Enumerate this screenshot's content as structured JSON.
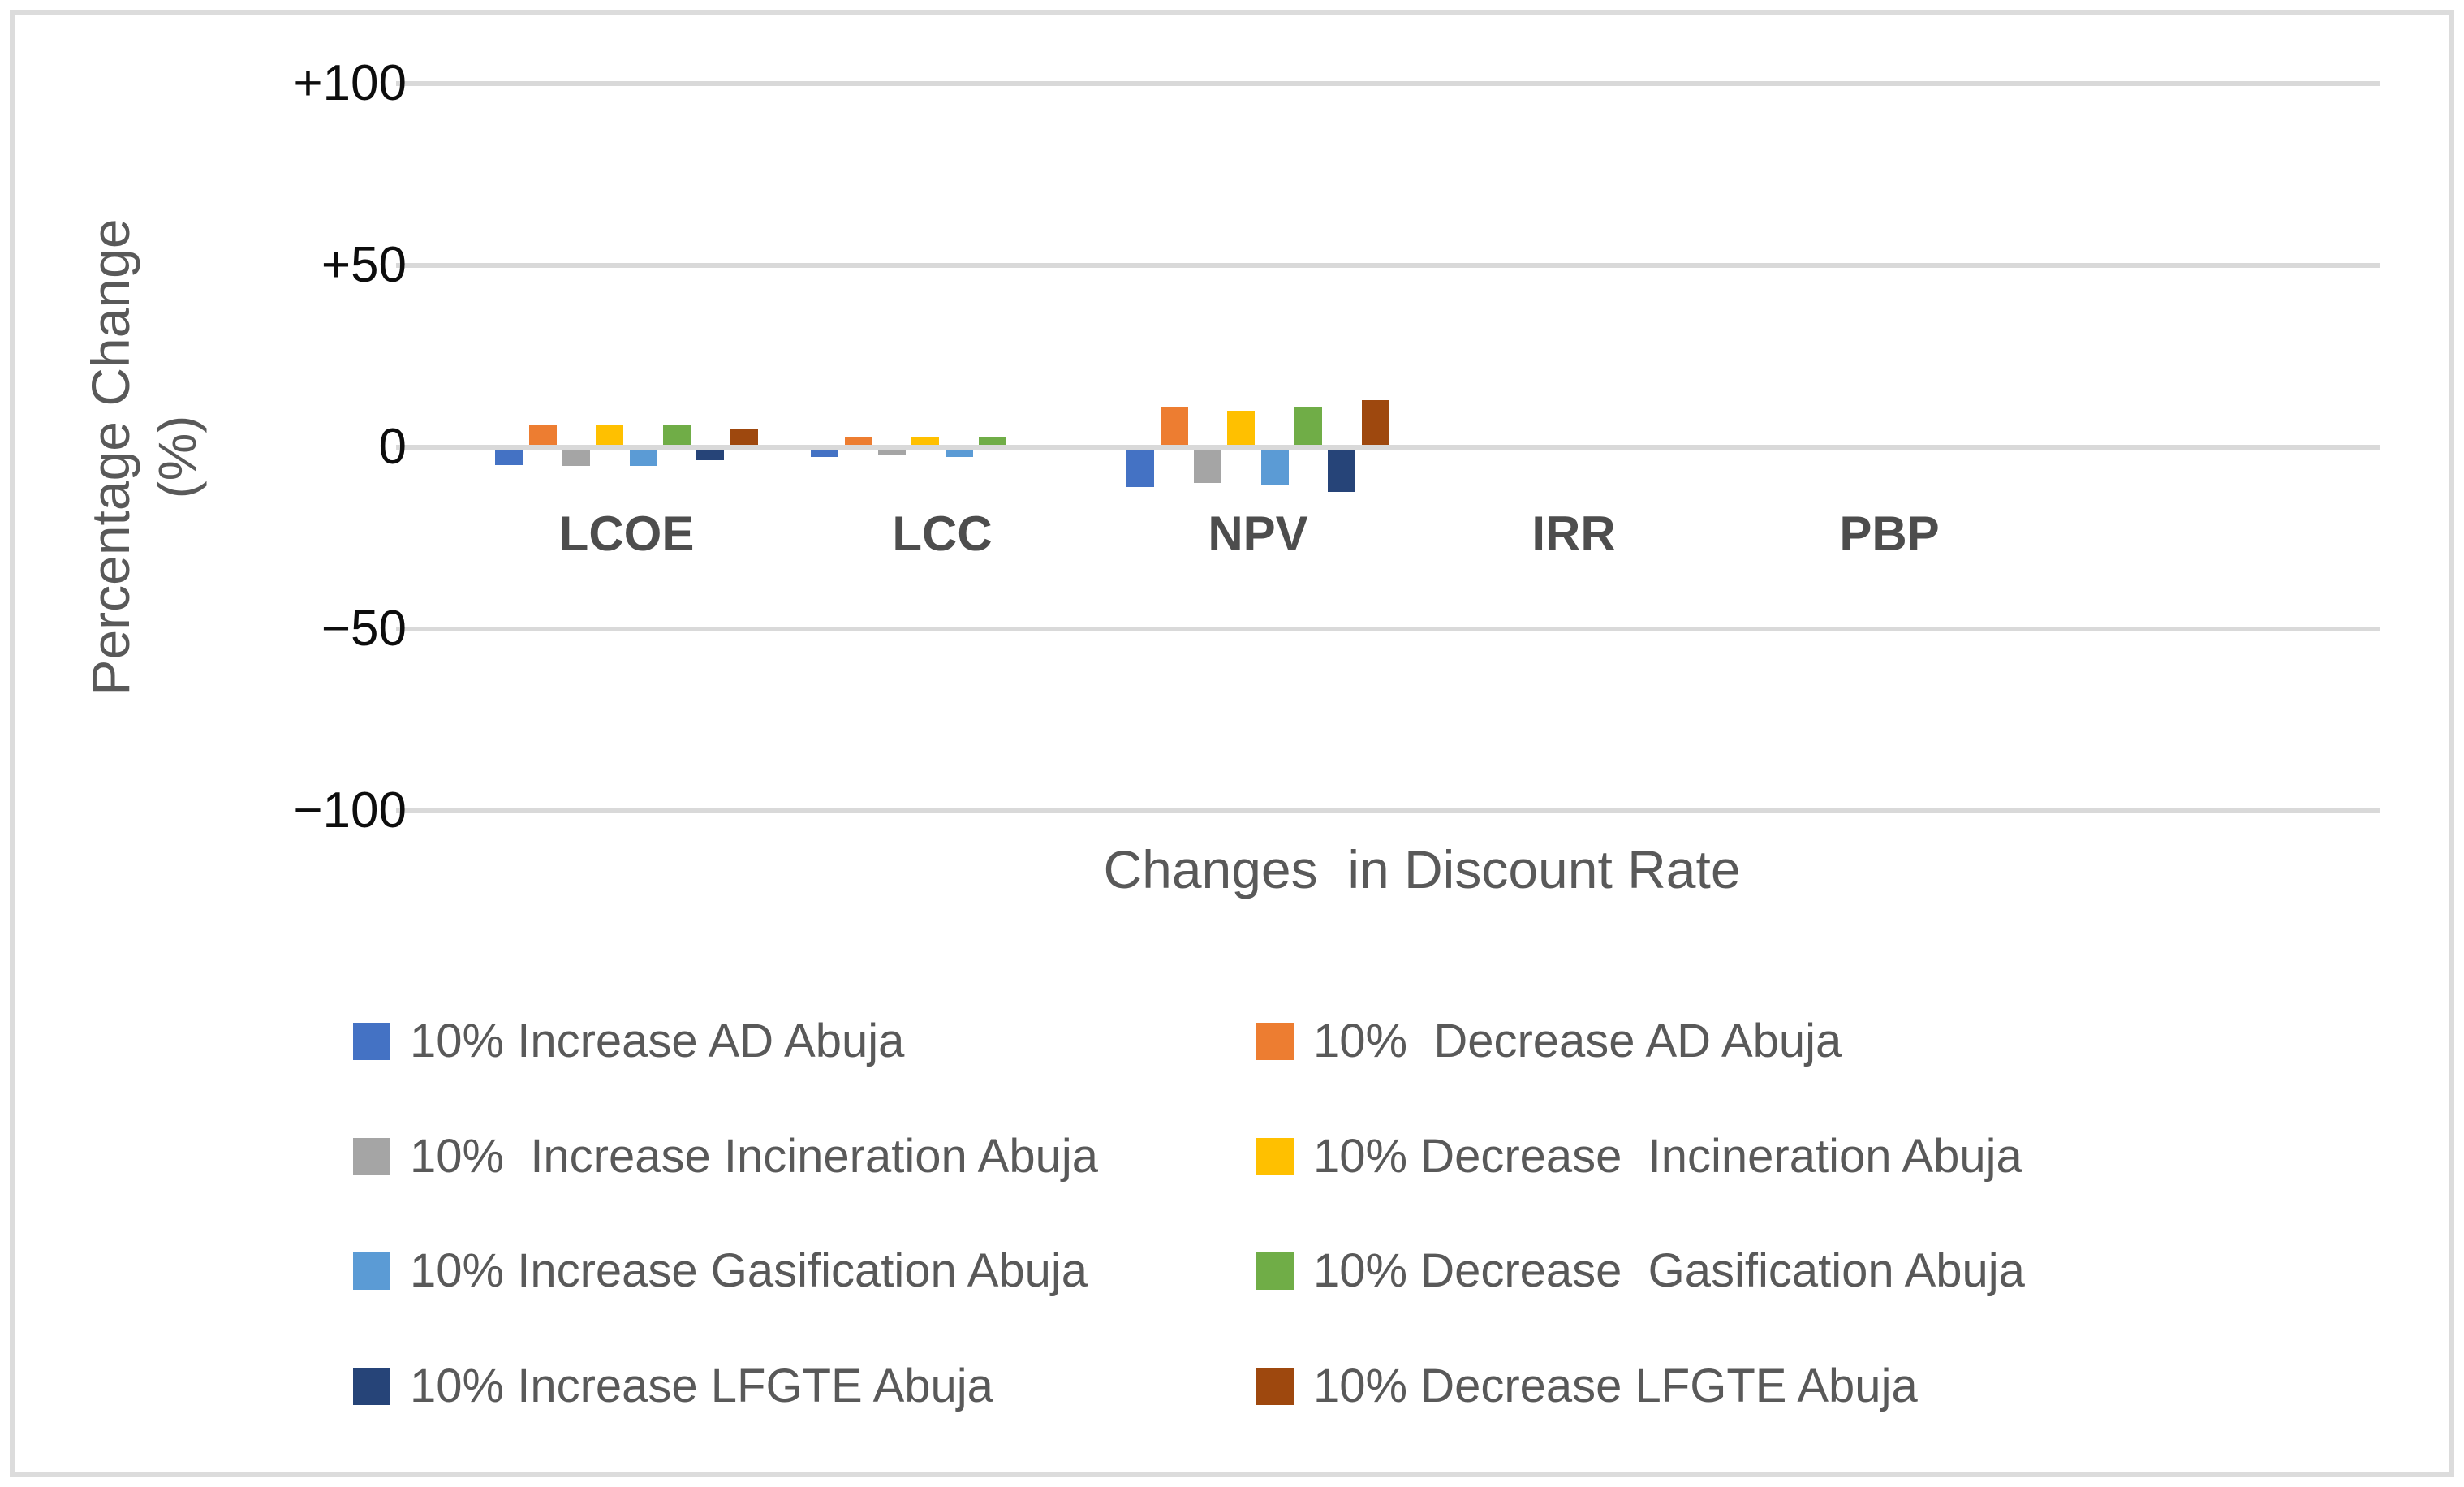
{
  "chart_data": {
    "type": "bar",
    "title": "",
    "xlabel": "Changes  in Discount Rate",
    "ylabel_lines": [
      "Percentage Change",
      "(%)"
    ],
    "categories": [
      "LCOE",
      "LCC",
      "NPV",
      "IRR",
      "PBP"
    ],
    "y_ticks": [
      {
        "label": "+100",
        "value": 100
      },
      {
        "label": "+50",
        "value": 50
      },
      {
        "label": "0",
        "value": 0
      },
      {
        "label": "−50",
        "value": -50
      },
      {
        "label": "−100",
        "value": -100
      }
    ],
    "ylim": [
      -100,
      100
    ],
    "grid": true,
    "legend_position": "bottom",
    "series": [
      {
        "name": "10% Increase AD Abuja",
        "color": "#4472C4",
        "values": [
          -4.3,
          -2.0,
          -10.2,
          0,
          0
        ]
      },
      {
        "name": "10%  Decrease AD Abuja",
        "color": "#ED7D31",
        "values": [
          5.4,
          1.9,
          10.6,
          0,
          0
        ]
      },
      {
        "name": "10%  Increase Incineration Abuja",
        "color": "#A5A5A5",
        "values": [
          -4.5,
          -1.6,
          -9.1,
          0,
          0
        ]
      },
      {
        "name": "10% Decrease  Incineration Abuja",
        "color": "#FFC000",
        "values": [
          5.5,
          1.9,
          9.4,
          0,
          0
        ]
      },
      {
        "name": "10% Increase Gasification Abuja",
        "color": "#5B9BD5",
        "values": [
          -4.5,
          -2.1,
          -9.7,
          0,
          0
        ]
      },
      {
        "name": "10% Decrease  Gasification Abuja",
        "color": "#70AD47",
        "values": [
          5.6,
          2.1,
          10.2,
          0,
          0
        ]
      },
      {
        "name": "10% Increase LFGTE Abuja",
        "color": "#264478",
        "values": [
          -3.0,
          0,
          -11.5,
          0,
          0
        ]
      },
      {
        "name": "10% Decrease LFGTE Abuja",
        "color": "#9E480E",
        "values": [
          4.3,
          0,
          12.3,
          0,
          0
        ]
      }
    ]
  }
}
